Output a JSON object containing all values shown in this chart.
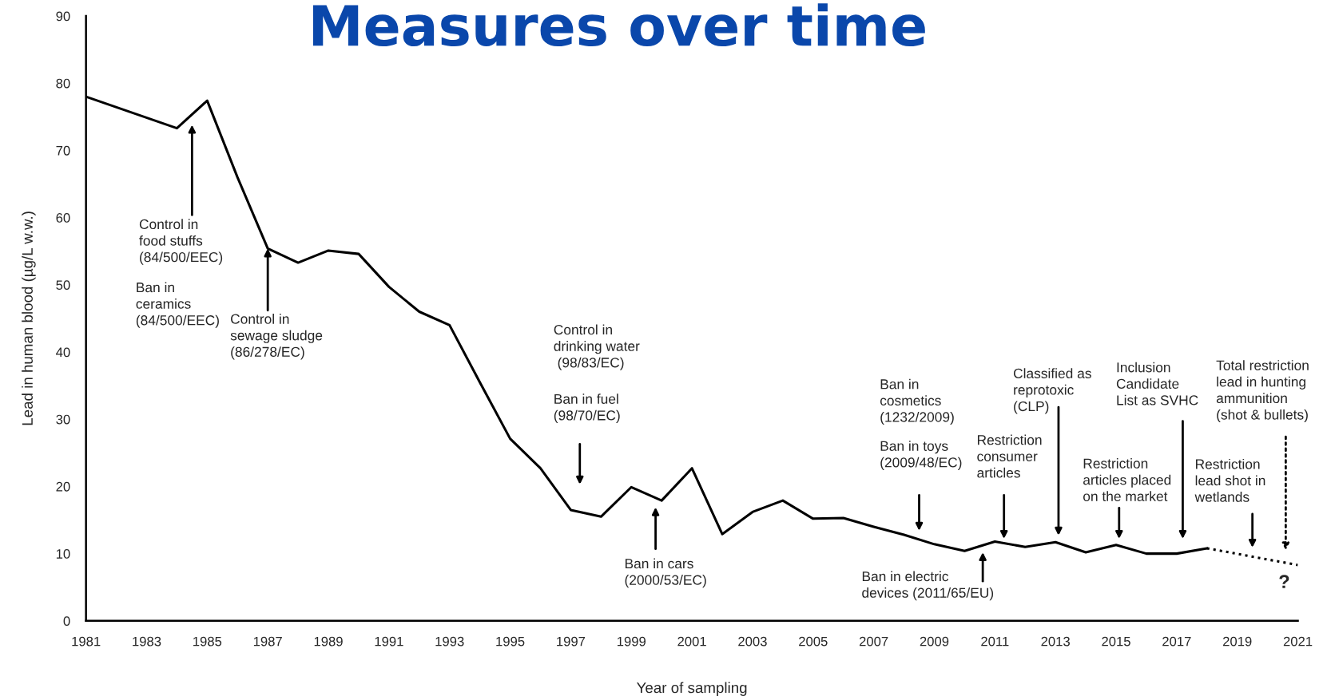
{
  "chart_data": {
    "type": "line",
    "title": "Measures over time",
    "xlabel": "Year of sampling",
    "ylabel": "Lead in human blood (µg/L w.w.)",
    "series": [
      {
        "color": "#000000",
        "line_style": "solid",
        "x": [
          1981,
          1984,
          1985,
          1986,
          1987,
          1988,
          1989,
          1990,
          1991,
          1992,
          1993,
          1994,
          1995,
          1996,
          1997,
          1998,
          1999,
          2000,
          2001,
          2002,
          2003,
          2004,
          2005,
          2006,
          2007,
          2008,
          2009,
          2010,
          2011,
          2012,
          2013,
          2014,
          2015,
          2016,
          2017,
          2018
        ],
        "values": [
          78,
          73.3,
          77.4,
          66,
          55.4,
          53.3,
          55.1,
          54.6,
          49.7,
          46,
          44,
          35.5,
          27.1,
          22.7,
          16.5,
          15.5,
          19.9,
          17.9,
          22.7,
          12.9,
          16.2,
          17.9,
          15.2,
          15.3,
          14,
          12.8,
          11.4,
          10.4,
          11.8,
          11.0,
          11.7,
          10.2,
          11.3,
          10.0,
          10.0,
          10.8
        ]
      },
      {
        "color": "#000000",
        "line_style": "dotted",
        "x": [
          2018,
          2021
        ],
        "values": [
          10.8,
          8.3
        ]
      }
    ],
    "xlim": [
      1981,
      2021
    ],
    "xticks": [
      1981,
      1983,
      1985,
      1987,
      1989,
      1991,
      1993,
      1995,
      1997,
      1999,
      2001,
      2003,
      2005,
      2007,
      2009,
      2011,
      2013,
      2015,
      2017,
      2019,
      2021
    ],
    "ylim": [
      0,
      90
    ],
    "yticks": [
      0,
      10,
      20,
      30,
      40,
      50,
      60,
      70,
      80,
      90
    ],
    "grid": false,
    "legend": false,
    "marker": "none",
    "annotations": [
      "Control in\nfood stuffs\n(84/500/EEC)",
      "Ban in\nceramics\n(84/500/EEC)",
      {
        "text": "Control in\nsewage sludge\n(86/278/EC)",
        "x": 1987,
        "y": 55.4
      },
      "Control in\ndrinking water\n (98/83/EC)",
      "Ban in fuel\n(98/70/EC)",
      "Ban in cars\n(2000/53/EC)",
      "Ban in\ncosmetics\n(1232/2009)",
      "Ban in toys\n(2009/48/EC)",
      "Ban in electric\ndevices (2011/65/EU)",
      "Restriction\nconsumer\narticles",
      "Classified as\nreprotoxic\n(CLP)",
      "Restriction\narticles placed\non the market",
      "Inclusion\nCandidate\nList as SVHC",
      "Restriction\nlead shot in\nwetlands",
      "Total restriction\nlead in hunting\nammunition\n(shot & bullets)",
      "?"
    ]
  }
}
